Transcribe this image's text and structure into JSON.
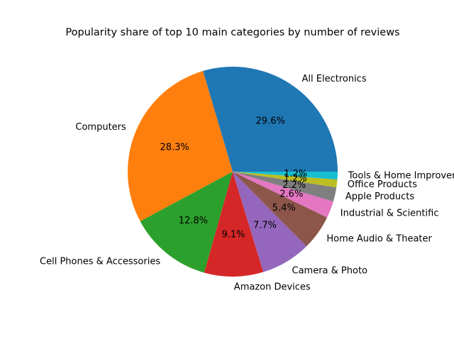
{
  "chart_data": {
    "type": "pie",
    "title": "Popularity share of top 10 main categories by number of reviews",
    "legend": "none",
    "categories": [
      "All Electronics",
      "Computers",
      "Cell Phones & Accessories",
      "Amazon Devices",
      "Camera & Photo",
      "Home Audio & Theater",
      "Industrial & Scientific",
      "Apple Products",
      "Office Products",
      "Tools & Home Improvement"
    ],
    "values": [
      29.6,
      28.3,
      12.8,
      9.1,
      7.7,
      5.4,
      2.6,
      2.2,
      1.2,
      1.2
    ],
    "pct_labels": [
      "29.6%",
      "28.3%",
      "12.8%",
      "9.1%",
      "7.7%",
      "5.4%",
      "2.6%",
      "2.2%",
      "1.2%",
      "1.2%"
    ],
    "colors": [
      "#1f77b4",
      "#ff7f0e",
      "#2ca02c",
      "#d62728",
      "#9467bd",
      "#8c564b",
      "#e377c2",
      "#7f7f7f",
      "#bcbd22",
      "#17becf"
    ]
  }
}
